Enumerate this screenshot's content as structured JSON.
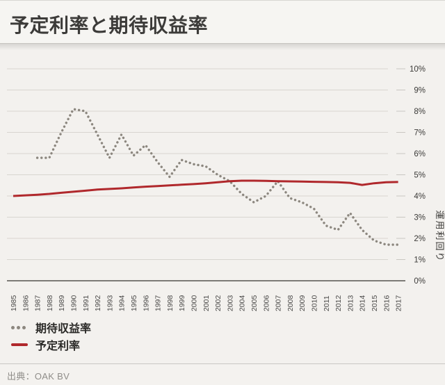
{
  "header": {
    "title": "予定利率と期待収益率"
  },
  "chart_data": {
    "type": "line",
    "title": "予定利率と期待収益率",
    "x_years": [
      1985,
      1986,
      1987,
      1988,
      1989,
      1990,
      1991,
      1992,
      1993,
      1994,
      1995,
      1996,
      1997,
      1998,
      1999,
      2000,
      2001,
      2002,
      2003,
      2004,
      2005,
      2006,
      2007,
      2008,
      2009,
      2010,
      2011,
      2012,
      2013,
      2014,
      2015,
      2016,
      2017
    ],
    "ylabel": "運用利回り",
    "ylim": [
      0,
      10
    ],
    "yticks": [
      "0%",
      "1%",
      "2%",
      "3%",
      "4%",
      "5%",
      "6%",
      "7%",
      "8%",
      "9%",
      "10%"
    ],
    "grid": true,
    "legend_position": "bottom-left",
    "series": [
      {
        "name": "期待収益率",
        "style": "dotted",
        "color": "#8c877f",
        "start_year": 1987,
        "values": [
          5.8,
          5.8,
          7.0,
          8.1,
          8.0,
          6.9,
          5.8,
          6.9,
          5.9,
          6.4,
          5.6,
          4.9,
          5.7,
          5.5,
          5.4,
          5.0,
          4.7,
          4.1,
          3.7,
          4.0,
          4.7,
          3.9,
          3.7,
          3.4,
          2.6,
          2.4,
          3.2,
          2.4,
          1.9,
          1.7,
          1.7
        ]
      },
      {
        "name": "予定利率",
        "style": "solid",
        "color": "#b0282c",
        "start_year": 1985,
        "values": [
          4.0,
          4.03,
          4.06,
          4.1,
          4.15,
          4.2,
          4.25,
          4.3,
          4.33,
          4.36,
          4.4,
          4.44,
          4.47,
          4.5,
          4.53,
          4.56,
          4.6,
          4.65,
          4.7,
          4.72,
          4.72,
          4.71,
          4.7,
          4.69,
          4.68,
          4.67,
          4.66,
          4.65,
          4.62,
          4.52,
          4.6,
          4.65,
          4.66
        ]
      }
    ]
  },
  "footer": {
    "source": "出典：OAK BV"
  }
}
